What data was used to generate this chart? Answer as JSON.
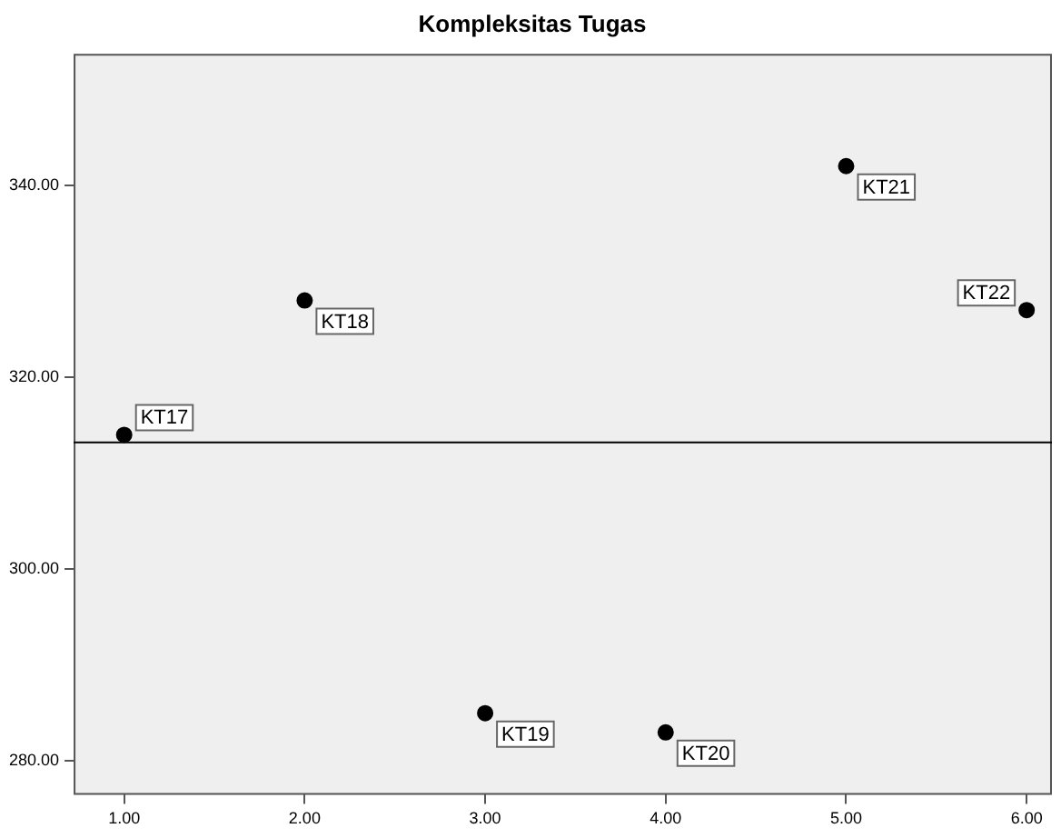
{
  "chart_data": {
    "type": "scatter",
    "title": "Kompleksitas Tugas",
    "x": [
      1,
      2,
      3,
      4,
      5,
      6
    ],
    "series": [
      {
        "color": "#000000",
        "values": [
          314,
          328,
          285,
          283,
          342,
          327
        ]
      }
    ],
    "marker": "circle",
    "xlim": [
      0.72,
      6.14
    ],
    "xticks": [
      {
        "value": 1,
        "label": "1.00"
      },
      {
        "value": 2,
        "label": "2.00"
      },
      {
        "value": 3,
        "label": "3.00"
      },
      {
        "value": 4,
        "label": "4.00"
      },
      {
        "value": 5,
        "label": "5.00"
      },
      {
        "value": 6,
        "label": "6.00"
      }
    ],
    "ylim": [
      276.5,
      353.7
    ],
    "yticks": [
      {
        "value": 280,
        "label": "280.00"
      },
      {
        "value": 300,
        "label": "300.00"
      },
      {
        "value": 320,
        "label": "320.00"
      },
      {
        "value": 340,
        "label": "340.00"
      }
    ],
    "grid": false,
    "legend": false,
    "ref_lines": [
      {
        "axis": "y",
        "value": 313.2,
        "color": "#000000"
      }
    ],
    "annotations": [
      {
        "text": "KT17",
        "x": 1,
        "y": 314
      },
      {
        "text": "KT18",
        "x": 2,
        "y": 328
      },
      {
        "text": "KT19",
        "x": 3,
        "y": 285
      },
      {
        "text": "KT20",
        "x": 4,
        "y": 283
      },
      {
        "text": "KT21",
        "x": 5,
        "y": 342
      },
      {
        "text": "KT22",
        "x": 6,
        "y": 327
      }
    ]
  }
}
